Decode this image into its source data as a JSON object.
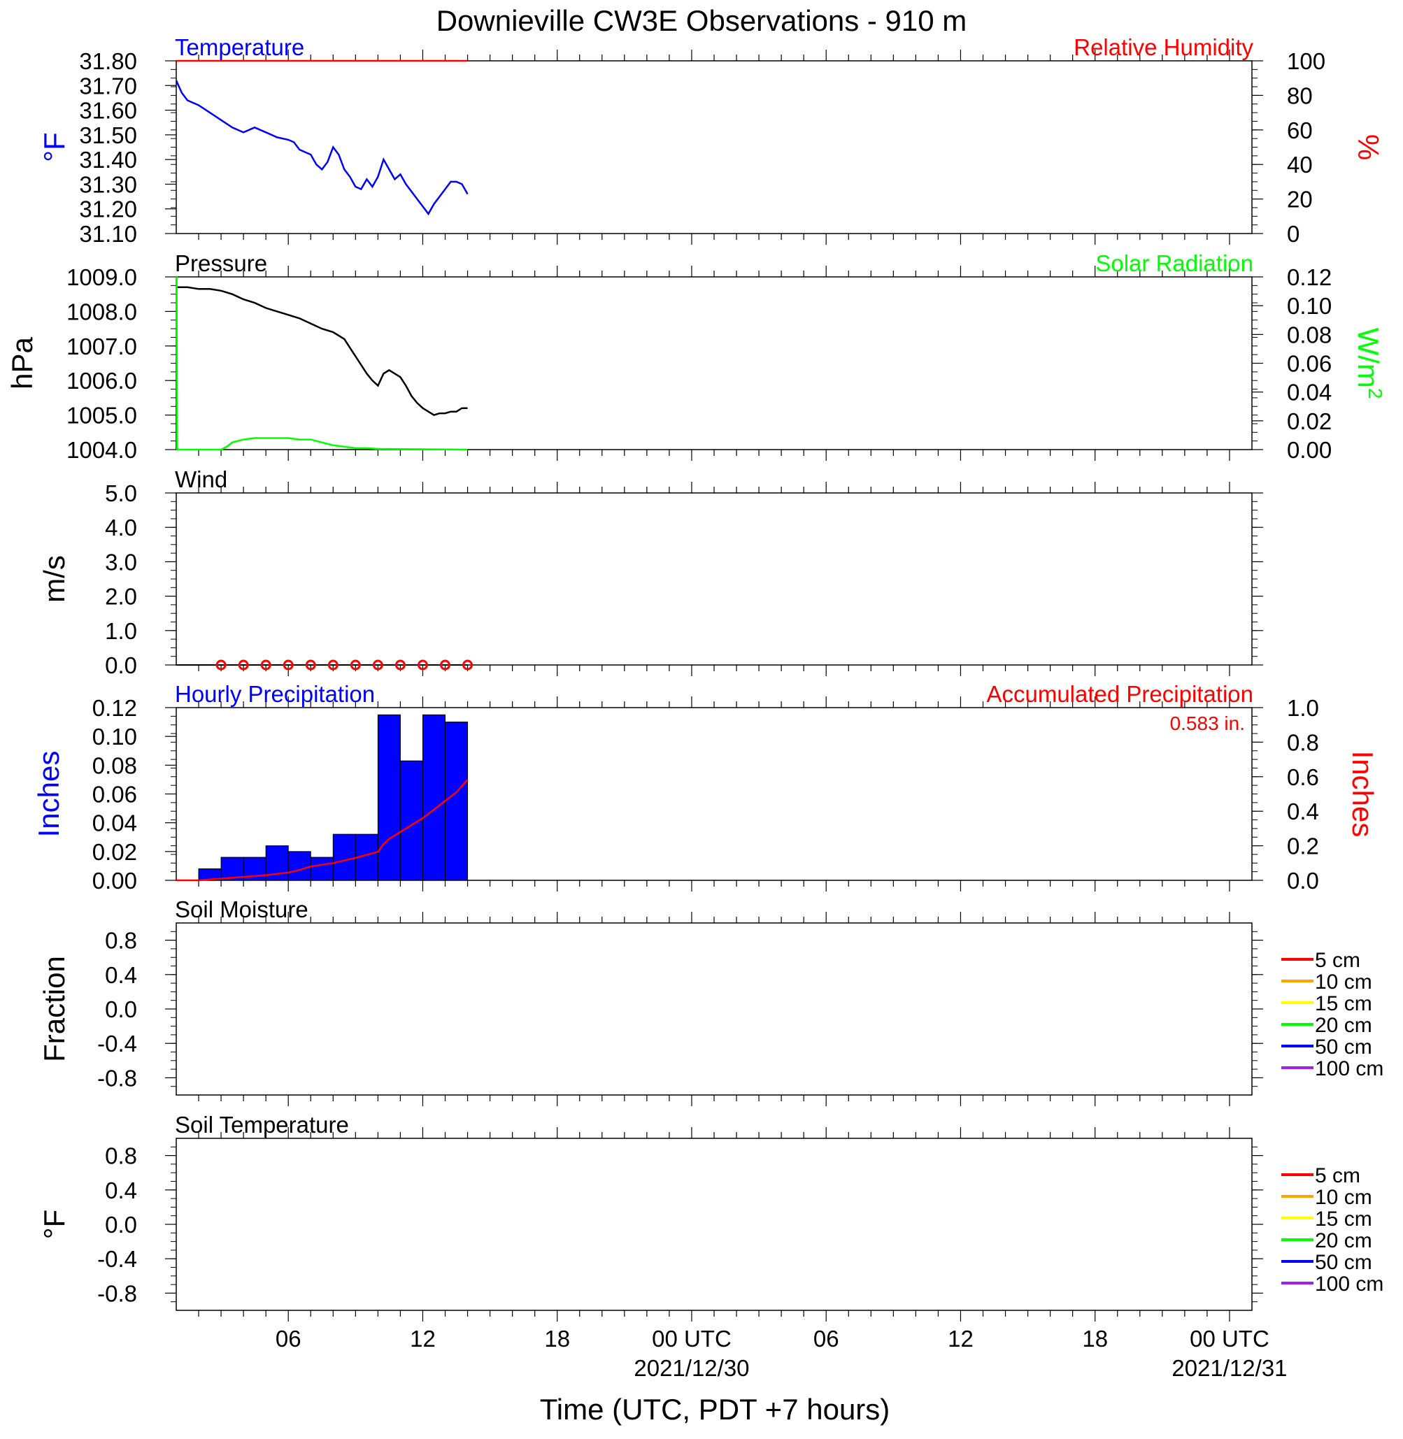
{
  "title": "Downieville CW3E Observations - 910 m",
  "xlabel": "Time (UTC, PDT +7 hours)",
  "colors": {
    "temperature": "#0000ff",
    "humidity": "#ff0000",
    "pressure": "#000000",
    "solar": "#00ff00",
    "wind_marker": "#ff0000",
    "hourly_precip": "#0000ff",
    "accum_precip": "#ff0000",
    "soil_5": "#ff0000",
    "soil_10": "#ffa500",
    "soil_15": "#ffff00",
    "soil_20": "#00ff00",
    "soil_50": "#0000ff",
    "soil_100": "#a020f0"
  },
  "x_axis": {
    "range_hours": [
      0,
      48
    ],
    "ticks": [
      {
        "hour": 5,
        "label": "06",
        "sub": ""
      },
      {
        "hour": 11,
        "label": "12",
        "sub": ""
      },
      {
        "hour": 17,
        "label": "18",
        "sub": ""
      },
      {
        "hour": 23,
        "label": "00 UTC",
        "sub": "2021/12/30"
      },
      {
        "hour": 29,
        "label": "06",
        "sub": ""
      },
      {
        "hour": 35,
        "label": "12",
        "sub": ""
      },
      {
        "hour": 41,
        "label": "18",
        "sub": ""
      },
      {
        "hour": 47,
        "label": "00 UTC",
        "sub": "2021/12/31"
      }
    ]
  },
  "chart_data": [
    {
      "type": "line",
      "panel": "temperature",
      "title_left": "Temperature",
      "title_right": "Relative Humidity",
      "ylabel_left": "°F",
      "ylabel_right": "%",
      "ylim_left": [
        31.1,
        31.8
      ],
      "ylim_right": [
        0,
        100
      ],
      "yticks_left": [
        "31.80",
        "31.70",
        "31.60",
        "31.50",
        "31.40",
        "31.30",
        "31.20",
        "31.10"
      ],
      "yticks_right": [
        "100",
        "80",
        "60",
        "40",
        "20",
        "0"
      ],
      "series": [
        {
          "name": "Temperature",
          "axis": "left",
          "x": [
            0,
            0.25,
            0.5,
            1,
            1.5,
            2,
            2.5,
            3,
            3.5,
            4,
            4.5,
            5,
            5.25,
            5.5,
            6,
            6.25,
            6.5,
            6.75,
            7,
            7.25,
            7.5,
            7.75,
            8,
            8.25,
            8.5,
            8.75,
            9,
            9.25,
            9.5,
            9.75,
            10,
            10.25,
            10.5,
            10.75,
            11,
            11.25,
            11.5,
            11.75,
            12,
            12.25,
            12.5,
            12.75,
            13
          ],
          "y": [
            31.72,
            31.67,
            31.64,
            31.62,
            31.59,
            31.56,
            31.53,
            31.51,
            31.53,
            31.51,
            31.49,
            31.48,
            31.47,
            31.44,
            31.42,
            31.38,
            31.36,
            31.39,
            31.45,
            31.42,
            31.36,
            31.33,
            31.29,
            31.28,
            31.32,
            31.29,
            31.33,
            31.4,
            31.36,
            31.32,
            31.34,
            31.3,
            31.27,
            31.24,
            31.21,
            31.18,
            31.22,
            31.25,
            31.28,
            31.31,
            31.31,
            31.3,
            31.26
          ]
        },
        {
          "name": "Relative Humidity",
          "axis": "right",
          "x": [
            0,
            13
          ],
          "y": [
            100,
            100
          ]
        }
      ]
    },
    {
      "type": "line",
      "panel": "pressure",
      "title_left": "Pressure",
      "title_right": "Solar Radiation",
      "ylabel_left": "hPa",
      "ylabel_right": "W/m",
      "ylabel_right_sup": "2",
      "ylim_left": [
        1004.0,
        1009.0
      ],
      "ylim_right": [
        0,
        0.12
      ],
      "yticks_left": [
        "1009.0",
        "1008.0",
        "1007.0",
        "1006.0",
        "1005.0",
        "1004.0"
      ],
      "yticks_right": [
        "0.12",
        "0.10",
        "0.08",
        "0.06",
        "0.04",
        "0.02",
        "0.00"
      ],
      "series": [
        {
          "name": "Pressure",
          "axis": "left",
          "x": [
            0,
            0.5,
            1,
            1.5,
            2,
            2.5,
            3,
            3.5,
            4,
            4.5,
            5,
            5.5,
            6,
            6.5,
            7,
            7.5,
            8,
            8.5,
            8.75,
            9,
            9.25,
            9.5,
            9.75,
            10,
            10.25,
            10.5,
            10.75,
            11,
            11.25,
            11.5,
            11.75,
            12,
            12.25,
            12.5,
            12.75,
            13
          ],
          "y": [
            1008.7,
            1008.7,
            1008.65,
            1008.65,
            1008.6,
            1008.5,
            1008.35,
            1008.25,
            1008.1,
            1008.0,
            1007.9,
            1007.8,
            1007.65,
            1007.5,
            1007.4,
            1007.2,
            1006.7,
            1006.2,
            1006.0,
            1005.85,
            1006.2,
            1006.3,
            1006.2,
            1006.1,
            1005.85,
            1005.55,
            1005.35,
            1005.2,
            1005.1,
            1005.0,
            1005.05,
            1005.05,
            1005.1,
            1005.1,
            1005.2,
            1005.2
          ]
        },
        {
          "name": "Solar Radiation",
          "axis": "right",
          "x": [
            0,
            0.02,
            0.04,
            2,
            2.25,
            2.5,
            3,
            3.5,
            4,
            4.5,
            5,
            5.5,
            6,
            6.5,
            7,
            7.5,
            8,
            8.5,
            9,
            13
          ],
          "y": [
            0.12,
            0.12,
            0,
            0,
            0.002,
            0.005,
            0.007,
            0.008,
            0.008,
            0.008,
            0.008,
            0.007,
            0.007,
            0.005,
            0.003,
            0.002,
            0.001,
            0.001,
            0.0005,
            0
          ]
        }
      ]
    },
    {
      "type": "scatter",
      "panel": "wind",
      "title_left": "Wind",
      "ylabel_left": "m/s",
      "ylim_left": [
        0,
        5
      ],
      "yticks_left": [
        "5.0",
        "4.0",
        "3.0",
        "2.0",
        "1.0",
        "0.0"
      ],
      "series": [
        {
          "name": "Wind",
          "axis": "left",
          "x": [
            2,
            3,
            4,
            5,
            6,
            7,
            8,
            9,
            10,
            11,
            12,
            13
          ],
          "y": [
            0,
            0,
            0,
            0,
            0,
            0,
            0,
            0,
            0,
            0,
            0,
            0
          ]
        }
      ]
    },
    {
      "type": "bar",
      "panel": "precipitation",
      "title_left": "Hourly Precipitation",
      "title_right": "Accumulated Precipitation",
      "annotation": "0.583 in.",
      "ylabel_left": "Inches",
      "ylabel_right": "Inches",
      "ylim_left": [
        0,
        0.12
      ],
      "ylim_right": [
        0,
        1.0
      ],
      "yticks_left": [
        "0.12",
        "0.10",
        "0.08",
        "0.06",
        "0.04",
        "0.02",
        "0.00"
      ],
      "yticks_right": [
        "1.0",
        "0.8",
        "0.6",
        "0.4",
        "0.2",
        "0.0"
      ],
      "bars": {
        "start_hours": [
          1,
          2,
          3,
          4,
          5,
          6,
          7,
          8,
          9,
          10,
          11,
          12
        ],
        "width_hours": 1,
        "values": [
          0.008,
          0.016,
          0.016,
          0.024,
          0.02,
          0.016,
          0.032,
          0.032,
          0.115,
          0.083,
          0.115,
          0.11
        ]
      },
      "series": [
        {
          "name": "Accumulated Precipitation",
          "axis": "right",
          "x": [
            0,
            1,
            2,
            3,
            4,
            5,
            5.5,
            6,
            7,
            8,
            9,
            9.25,
            9.5,
            10,
            10.5,
            11,
            11.5,
            12,
            12.5,
            13
          ],
          "y": [
            0,
            0,
            0.01,
            0.02,
            0.03,
            0.045,
            0.06,
            0.08,
            0.1,
            0.13,
            0.165,
            0.21,
            0.24,
            0.28,
            0.32,
            0.36,
            0.41,
            0.46,
            0.51,
            0.583
          ]
        }
      ]
    },
    {
      "type": "line",
      "panel": "soil_moisture",
      "title_left": "Soil Moisture",
      "ylabel_left": "Fraction",
      "ylim_left": [
        -1,
        1
      ],
      "yticks_left": [
        "0.8",
        "0.4",
        "0.0",
        "-0.4",
        "-0.8"
      ],
      "yticks_values": [
        0.8,
        0.4,
        0.0,
        -0.4,
        -0.8
      ],
      "legend": [
        "5 cm",
        "10 cm",
        "15 cm",
        "20 cm",
        "50 cm",
        "100 cm"
      ],
      "series": []
    },
    {
      "type": "line",
      "panel": "soil_temperature",
      "title_left": "Soil Temperature",
      "ylabel_left": "°F",
      "ylim_left": [
        -1,
        1
      ],
      "yticks_left": [
        "0.8",
        "0.4",
        "0.0",
        "-0.4",
        "-0.8"
      ],
      "yticks_values": [
        0.8,
        0.4,
        0.0,
        -0.4,
        -0.8
      ],
      "legend": [
        "5 cm",
        "10 cm",
        "15 cm",
        "20 cm",
        "50 cm",
        "100 cm"
      ],
      "series": []
    }
  ]
}
